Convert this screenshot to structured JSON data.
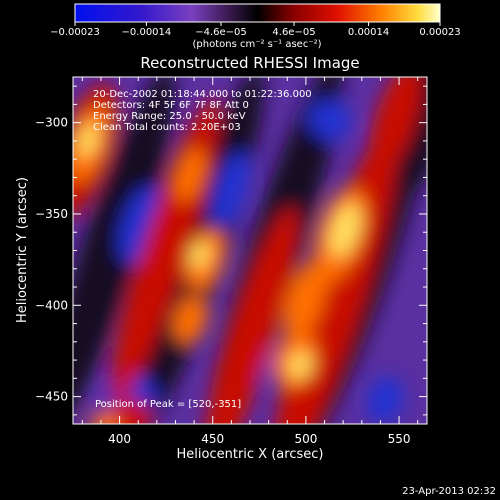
{
  "chart_data": {
    "type": "heatmap",
    "title": "Reconstructed RHESSI Image",
    "xlabel": "Heliocentric X (arcsec)",
    "ylabel": "Heliocentric Y (arcsec)",
    "xlim": [
      375,
      565
    ],
    "ylim": [
      -465,
      -275
    ],
    "x_ticks": [
      400,
      450,
      500,
      550
    ],
    "x_tick_labels": [
      "400",
      "450",
      "500",
      "550"
    ],
    "y_ticks": [
      -300,
      -350,
      -400,
      -450
    ],
    "y_tick_labels": [
      "−300",
      "−350",
      "−400",
      "−450"
    ],
    "colorbar": {
      "range": [
        -0.00023,
        0.00023
      ],
      "ticks": [
        -0.00023,
        -0.00014,
        -4.6e-05,
        4.6e-05,
        0.00014,
        0.00023
      ],
      "tick_labels": [
        "−0.00023",
        "−0.00014",
        "−4.6e−05",
        "4.6e−05",
        "0.00014",
        "0.00023"
      ],
      "unit_label": "(photons cm⁻² s⁻¹ asec⁻²)",
      "colors": [
        "#0000cc",
        "#6633bb",
        "#000000",
        "#b00000",
        "#ff6000",
        "#ffff99"
      ]
    },
    "annotations": [
      "20-Dec-2002 01:18:44.000 to 01:22:36.000",
      "Detectors: 4F 5F 6F 7F 8F  Att 0",
      "Energy Range: 25.0 - 50.0 keV",
      "Clean    Total counts: 2.20E+03",
      "Position of Peak = [520,-351]"
    ],
    "peak": {
      "x": 520,
      "y": -351
    },
    "note_count_total": 2200
  },
  "footer_timestamp": "23-Apr-2013 02:32"
}
